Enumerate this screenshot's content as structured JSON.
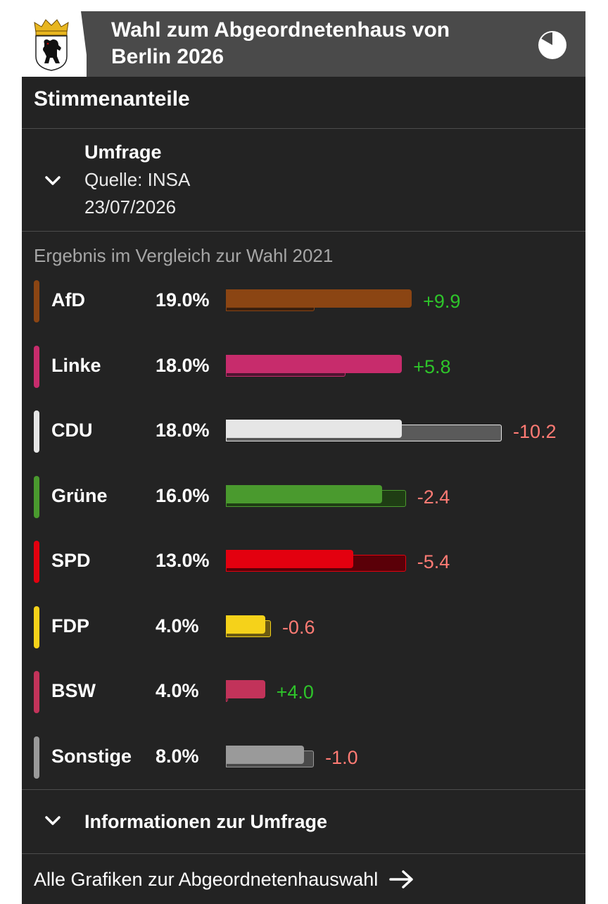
{
  "header": {
    "title": "Wahl zum Abgeordnetenhaus von Berlin 2026",
    "crest_icon": "berlin-bear-crest",
    "chart_toggle_icon": "pie-chart-icon"
  },
  "section": {
    "title": "Stimmenanteile"
  },
  "poll": {
    "title": "Umfrage",
    "source": "Quelle: INSA",
    "date": "23/07/2026",
    "toggle_icon": "chevron-down-icon"
  },
  "comparison_label": "Ergebnis im Vergleich zur Wahl 2021",
  "colors": {
    "positive_diff": "#2ec42a",
    "negative_diff": "#ff7b74"
  },
  "chart_data": {
    "type": "bar",
    "categories": [
      "AfD",
      "Linke",
      "CDU",
      "Grüne",
      "SPD",
      "FDP",
      "BSW",
      "Sonstige"
    ],
    "series": [
      {
        "name": "Umfrage",
        "values": [
          19.0,
          18.0,
          18.0,
          16.0,
          13.0,
          4.0,
          4.0,
          8.0
        ]
      },
      {
        "name": "Wahl 2021",
        "values": [
          9.1,
          12.2,
          28.2,
          18.4,
          18.4,
          4.6,
          0.0,
          9.0
        ]
      }
    ],
    "value_labels": [
      "19.0%",
      "18.0%",
      "18.0%",
      "16.0%",
      "13.0%",
      "4.0%",
      "4.0%",
      "8.0%"
    ],
    "diff_labels": [
      "+9.9",
      "+5.8",
      "-10.2",
      "-2.4",
      "-5.4",
      "-0.6",
      "+4.0",
      "-1.0"
    ],
    "party_colors": [
      "#8b4513",
      "#c72c6c",
      "#e6e6e6",
      "#4a9a2e",
      "#e3000f",
      "#f5d21a",
      "#c2335a",
      "#9a9a9a"
    ],
    "prev_fill_colors": [
      "#3a1f0e",
      "#4f1430",
      "#5a5a5a",
      "#1f3d14",
      "#5a0008",
      "#6b5a12",
      "#4a1422",
      "#4a4a4a"
    ],
    "xlim": [
      0,
      28.2
    ]
  },
  "info": {
    "label": "Informationen zur Umfrage",
    "toggle_icon": "chevron-down-icon"
  },
  "footer_link": {
    "label": "Alle Grafiken zur Abgeordnetenhauswahl",
    "icon": "arrow-right-icon"
  }
}
